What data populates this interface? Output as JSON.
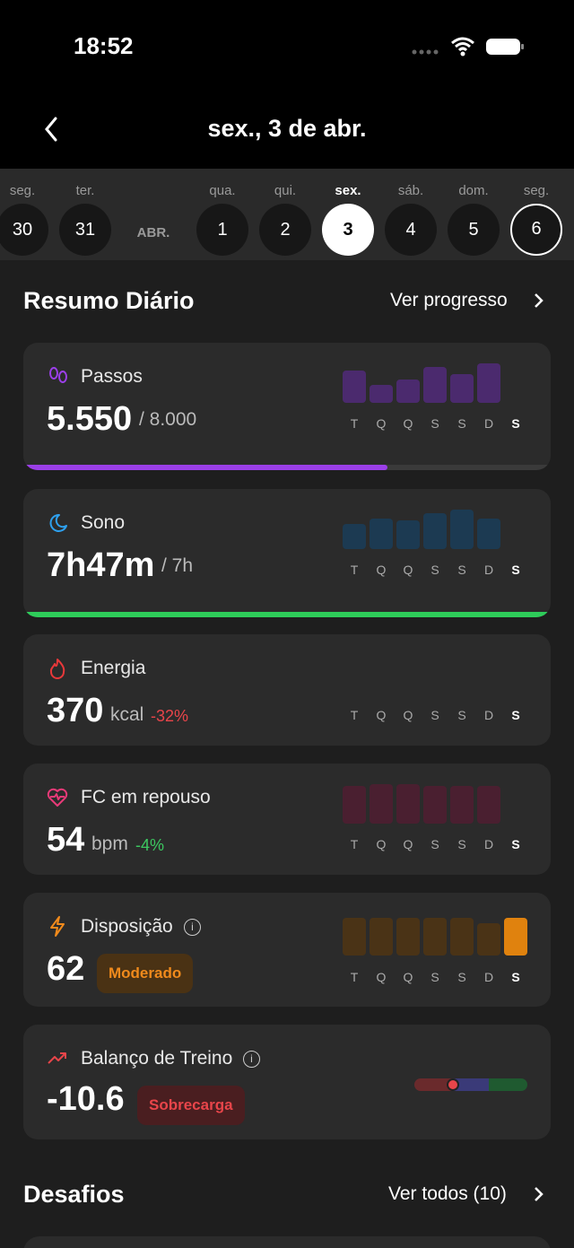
{
  "status_bar": {
    "time": "18:52"
  },
  "header": {
    "title": "sex., 3 de abr."
  },
  "days": [
    {
      "weekday": "seg.",
      "day": "30"
    },
    {
      "weekday": "ter.",
      "day": "31"
    },
    {
      "weekday": "qua.",
      "day": "1"
    },
    {
      "weekday": "qui.",
      "day": "2"
    },
    {
      "weekday": "sex.",
      "day": "3"
    },
    {
      "weekday": "sáb.",
      "day": "4"
    },
    {
      "weekday": "dom.",
      "day": "5"
    },
    {
      "weekday": "seg.",
      "day": "6"
    }
  ],
  "month_label": "ABR.",
  "summary": {
    "title": "Resumo Diário",
    "link": "Ver progresso"
  },
  "cards": [
    {
      "title": "Passos",
      "value": "5.550",
      "unit": "/ 8.000",
      "progress": 0.69,
      "bar_color": "#4b2a6e",
      "week": [
        "T",
        "Q",
        "Q",
        "S",
        "S",
        "D",
        "S"
      ],
      "bars": [
        36,
        20,
        26,
        40,
        32,
        44
      ]
    },
    {
      "title": "Sono",
      "value": "7h47m",
      "unit": "/ 7h",
      "progress": 1,
      "bar_color": "#1c3a52",
      "week": [
        "T",
        "Q",
        "Q",
        "S",
        "S",
        "D",
        "S"
      ],
      "bars": [
        28,
        34,
        32,
        40,
        44,
        34
      ]
    },
    {
      "title": "Energia",
      "value": "370",
      "unit": "kcal",
      "delta": "-32%",
      "week": [
        "T",
        "Q",
        "Q",
        "S",
        "S",
        "D",
        "S"
      ]
    },
    {
      "title": "FC em repouso",
      "value": "54",
      "unit": "bpm",
      "delta": "-4%",
      "bar_color": "#4a1f30",
      "week": [
        "T",
        "Q",
        "Q",
        "S",
        "S",
        "D",
        "S"
      ],
      "bars": [
        42,
        44,
        44,
        42,
        42,
        42
      ]
    },
    {
      "title": "Disposição",
      "value": "62",
      "badge": "Moderado",
      "bar_color": "#4a3316",
      "week": [
        "T",
        "Q",
        "Q",
        "S",
        "S",
        "D",
        "S"
      ],
      "bars": [
        42,
        42,
        42,
        42,
        42,
        36,
        42
      ]
    },
    {
      "title": "Balanço de Treino",
      "value": "-10.6",
      "badge": "Sobrecarga",
      "balance": 0.34
    }
  ],
  "challenges": {
    "title": "Desafios",
    "link": "Ver todos (10)"
  }
}
